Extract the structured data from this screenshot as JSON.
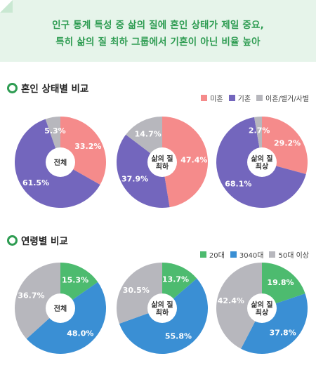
{
  "header": {
    "line1": "인구 통계 특성 중 삶의 질에 혼인 상태가 제일 중요,",
    "line2": "특히 삶의 질 최하 그룹에서 기혼이 아닌 비율 높아"
  },
  "sections": [
    {
      "title": "혼인 상태별 비교",
      "legend": [
        {
          "label": "미혼",
          "color": "#f58b8b"
        },
        {
          "label": "기혼",
          "color": "#7366bd"
        },
        {
          "label": "이혼/별거/사별",
          "color": "#b7b7bd"
        }
      ]
    },
    {
      "title": "연령별 비교",
      "legend": [
        {
          "label": "20대",
          "color": "#4dbb6f"
        },
        {
          "label": "3040대",
          "color": "#3a8fd4"
        },
        {
          "label": "50대 이상",
          "color": "#b7b7bd"
        }
      ]
    }
  ],
  "chart_data": [
    {
      "type": "pie",
      "center_label": [
        "전체"
      ],
      "categories": [
        "미혼",
        "기혼",
        "이혼/별거/사별"
      ],
      "values": [
        33.2,
        61.5,
        5.3
      ],
      "labels": [
        "33.2%",
        "61.5%",
        "5.3%"
      ],
      "colors": [
        "#f58b8b",
        "#7366bd",
        "#b7b7bd"
      ]
    },
    {
      "type": "pie",
      "center_label": [
        "삶의 질",
        "최하"
      ],
      "categories": [
        "미혼",
        "기혼",
        "이혼/별거/사별"
      ],
      "values": [
        47.4,
        37.9,
        14.7
      ],
      "labels": [
        "47.4%",
        "37.9%",
        "14.7%"
      ],
      "colors": [
        "#f58b8b",
        "#7366bd",
        "#b7b7bd"
      ]
    },
    {
      "type": "pie",
      "center_label": [
        "삶의 질",
        "최상"
      ],
      "categories": [
        "미혼",
        "기혼",
        "이혼/별거/사별"
      ],
      "values": [
        29.2,
        68.1,
        2.7
      ],
      "labels": [
        "29.2%",
        "68.1%",
        "2.7%"
      ],
      "colors": [
        "#f58b8b",
        "#7366bd",
        "#b7b7bd"
      ]
    },
    {
      "type": "pie",
      "center_label": [
        "전체"
      ],
      "categories": [
        "20대",
        "3040대",
        "50대 이상"
      ],
      "values": [
        15.3,
        48.0,
        36.7
      ],
      "labels": [
        "15.3%",
        "48.0%",
        "36.7%"
      ],
      "colors": [
        "#4dbb6f",
        "#3a8fd4",
        "#b7b7bd"
      ]
    },
    {
      "type": "pie",
      "center_label": [
        "삶의 질",
        "최하"
      ],
      "categories": [
        "20대",
        "3040대",
        "50대 이상"
      ],
      "values": [
        13.7,
        55.8,
        30.5
      ],
      "labels": [
        "13.7%",
        "55.8%",
        "30.5%"
      ],
      "colors": [
        "#4dbb6f",
        "#3a8fd4",
        "#b7b7bd"
      ]
    },
    {
      "type": "pie",
      "center_label": [
        "삶의 질",
        "최상"
      ],
      "categories": [
        "20대",
        "3040대",
        "50대 이상"
      ],
      "values": [
        19.8,
        37.8,
        42.4
      ],
      "labels": [
        "19.8%",
        "37.8%",
        "42.4%"
      ],
      "colors": [
        "#4dbb6f",
        "#3a8fd4",
        "#b7b7bd"
      ]
    }
  ]
}
